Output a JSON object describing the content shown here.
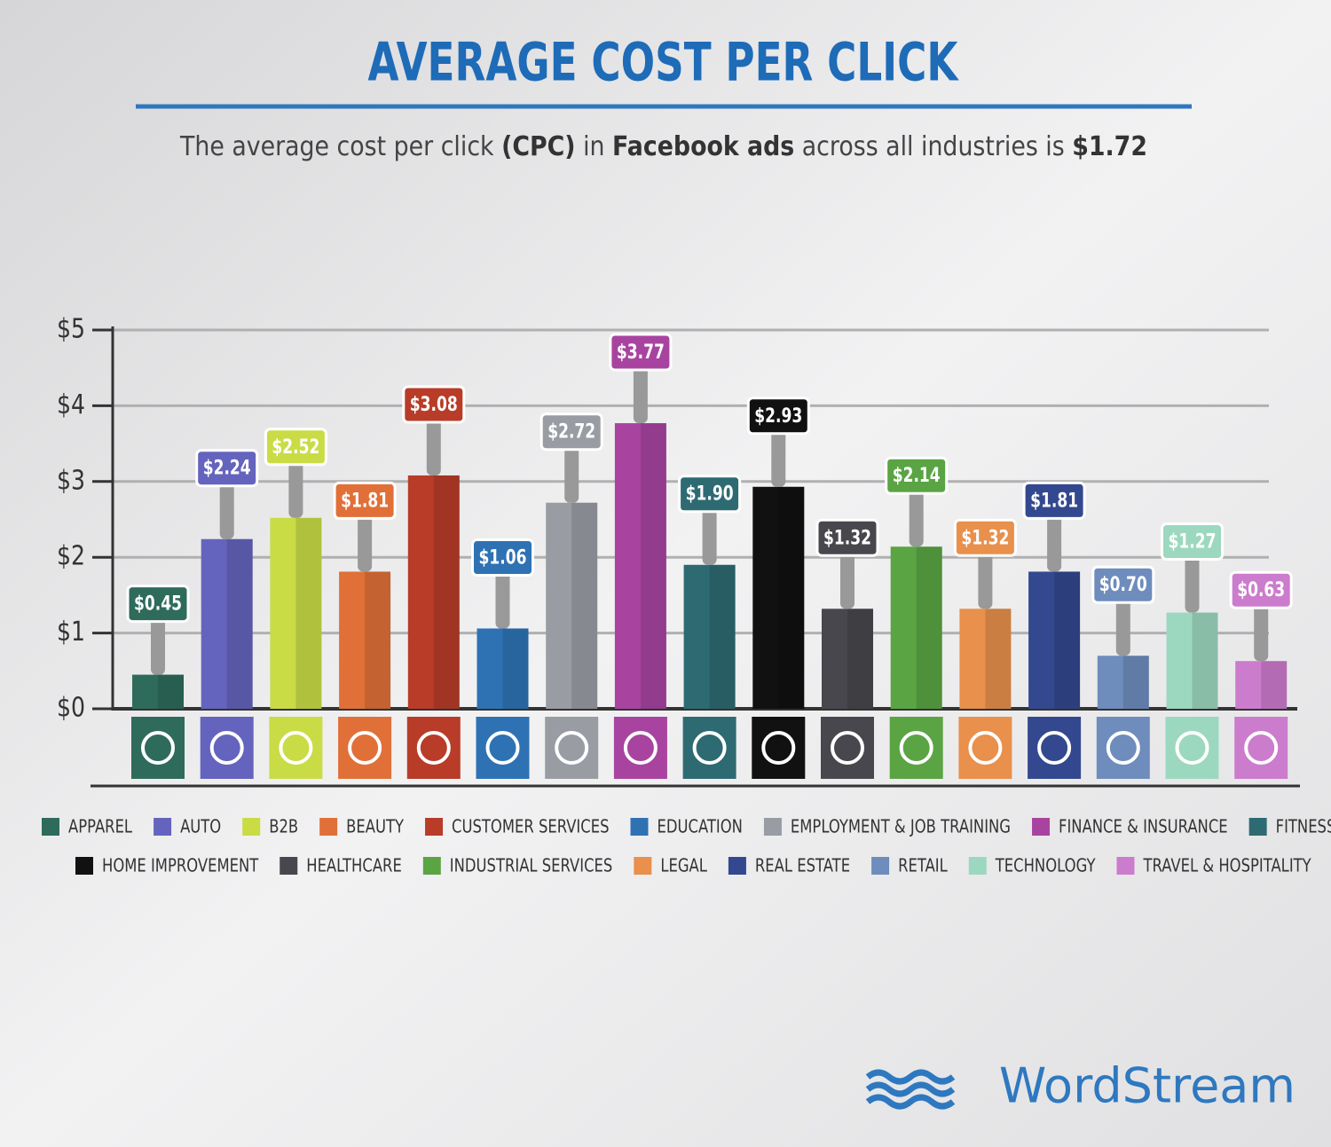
{
  "chart_data": {
    "type": "bar",
    "title": "AVERAGE COST PER CLICK",
    "subtitle_parts": [
      "The average cost per click ",
      "(CPC)",
      " in ",
      "Facebook ads",
      " across all industries is ",
      "$1.72"
    ],
    "categories": [
      "APPAREL",
      "AUTO",
      "B2B",
      "BEAUTY",
      "CUSTOMER SERVICES",
      "EDUCATION",
      "EMPLOYMENT & JOB TRAINING",
      "FINANCE & INSURANCE",
      "FITNESS",
      "HOME IMPROVEMENT",
      "HEALTHCARE",
      "INDUSTRIAL SERVICES",
      "LEGAL",
      "REAL ESTATE",
      "RETAIL",
      "TECHNOLOGY",
      "TRAVEL & HOSPITALITY"
    ],
    "values": [
      0.45,
      2.24,
      2.52,
      1.81,
      3.08,
      1.06,
      2.72,
      3.77,
      1.9,
      2.93,
      1.32,
      2.14,
      1.32,
      1.81,
      0.7,
      1.27,
      0.63
    ],
    "value_labels": [
      "$0.45",
      "$2.24",
      "$2.52",
      "$1.81",
      "$3.08",
      "$1.06",
      "$2.72",
      "$3.77",
      "$1.90",
      "$2.93",
      "$1.32",
      "$2.14",
      "$1.32",
      "$1.81",
      "$0.70",
      "$1.27",
      "$0.63"
    ],
    "colors": [
      "#2e6b5a",
      "#6464be",
      "#c9dc46",
      "#e07038",
      "#b83c28",
      "#2e72b4",
      "#9a9ca4",
      "#a844a0",
      "#2e6a72",
      "#111111",
      "#47474d",
      "#5aa444",
      "#e8904c",
      "#33488e",
      "#6e8cbc",
      "#9cd8c0",
      "#cc7ccc"
    ],
    "ylim": [
      0,
      5
    ],
    "yticks": [
      {
        "value": 0,
        "label": "$0"
      },
      {
        "value": 1,
        "label": "$1"
      },
      {
        "value": 2,
        "label": "$2"
      },
      {
        "value": 3,
        "label": "$3"
      },
      {
        "value": 4,
        "label": "$4"
      },
      {
        "value": 5,
        "label": "$5"
      }
    ],
    "grid": true,
    "brand": "WordStream"
  }
}
